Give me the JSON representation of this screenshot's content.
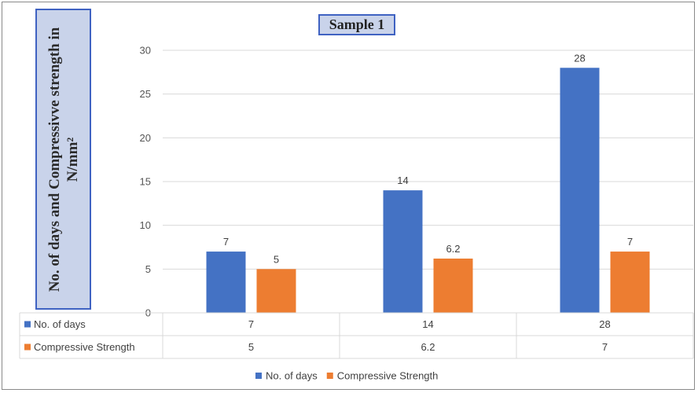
{
  "colors": {
    "series1": "#4472c4",
    "series2": "#ed7d31"
  },
  "chart_data": {
    "type": "bar",
    "title": "Sample 1",
    "ylabel": "No. of days and Compressivve strength in N/mm²",
    "xlabel": "",
    "categories": [
      "",
      "",
      ""
    ],
    "ylim": [
      0,
      30
    ],
    "yticks": [
      0,
      5,
      10,
      15,
      20,
      25,
      30
    ],
    "grid": true,
    "legend_position": "bottom",
    "data_table": true,
    "series": [
      {
        "name": "No. of days",
        "values": [
          7,
          14,
          28
        ],
        "labels": [
          "7",
          "14",
          "28"
        ]
      },
      {
        "name": "Compressive Strength",
        "values": [
          5,
          6.2,
          7
        ],
        "labels": [
          "5",
          "6.2",
          "7"
        ]
      }
    ]
  }
}
